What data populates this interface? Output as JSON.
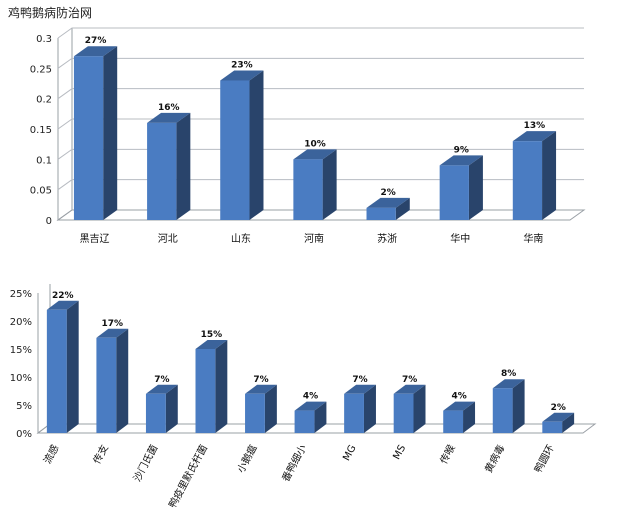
{
  "site_title": "鸡鸭鹅病防治网",
  "chart_data": [
    {
      "type": "bar",
      "categories": [
        "黑吉辽",
        "河北",
        "山东",
        "河南",
        "苏浙",
        "华中",
        "华南"
      ],
      "values": [
        0.27,
        0.16,
        0.23,
        0.1,
        0.02,
        0.09,
        0.13
      ],
      "data_labels": [
        "27%",
        "16%",
        "23%",
        "10%",
        "2%",
        "9%",
        "13%"
      ],
      "yticks": [
        "0",
        "0.05",
        "0.1",
        "0.15",
        "0.2",
        "0.25",
        "0.3"
      ],
      "ylim": [
        0,
        0.3
      ],
      "grid": true,
      "color": "#4a7cc2"
    },
    {
      "type": "bar",
      "categories": [
        "流感",
        "传支",
        "沙门氏菌",
        "鸭疫里默氏杆菌",
        "小鹅瘟",
        "番鸭细小",
        "MG",
        "MS",
        "传喉",
        "黄病毒",
        "鸭圆环"
      ],
      "values": [
        22,
        17,
        7,
        15,
        7,
        4,
        7,
        7,
        4,
        8,
        2
      ],
      "data_labels": [
        "22%",
        "17%",
        "7%",
        "15%",
        "7%",
        "4%",
        "7%",
        "7%",
        "4%",
        "8%",
        "2%"
      ],
      "yticks": [
        "0%",
        "5%",
        "10%",
        "15%",
        "20%",
        "25%"
      ],
      "ylim": [
        0,
        25
      ],
      "grid": false,
      "color": "#4a7cc2"
    }
  ]
}
